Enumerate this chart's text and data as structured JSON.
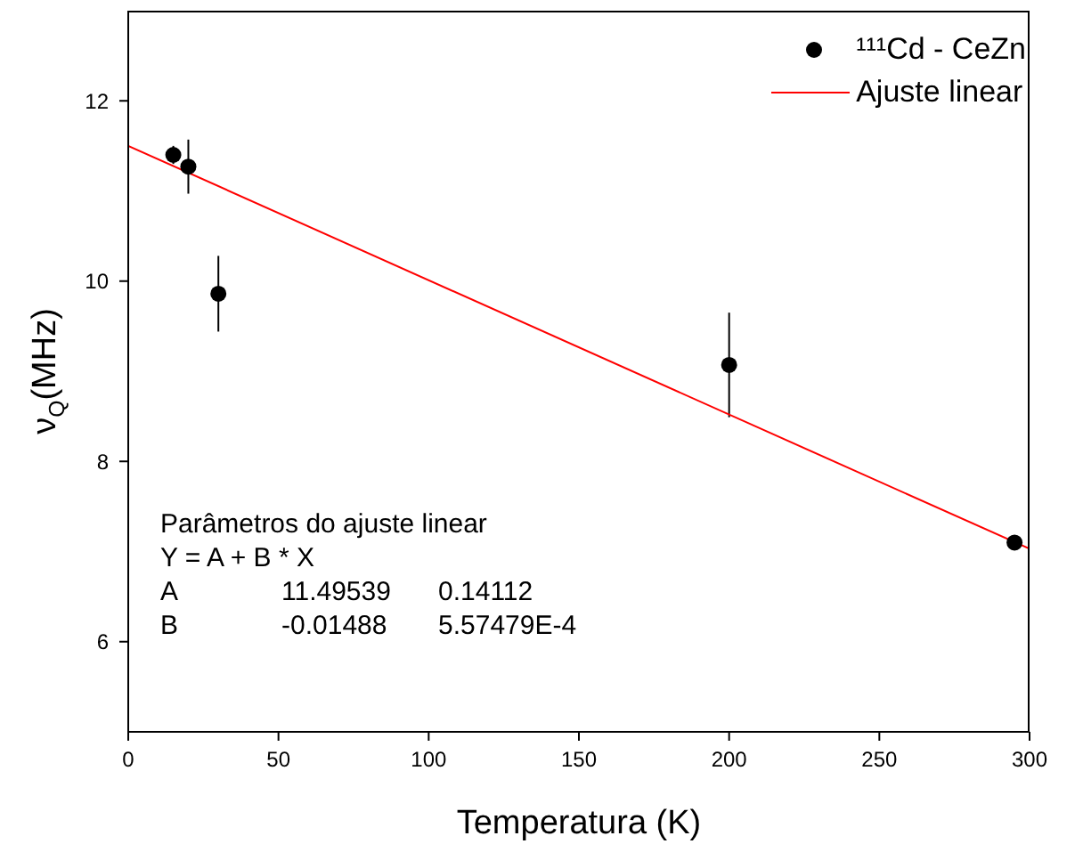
{
  "chart_data": {
    "type": "scatter",
    "xlabel": "Temperatura (K)",
    "ylabel": "ν$_{Q}$(MHz)",
    "xlim": [
      0,
      300
    ],
    "ylim": [
      5,
      13
    ],
    "xticks": [
      0,
      50,
      100,
      150,
      200,
      250,
      300
    ],
    "yticks": [
      6,
      8,
      10,
      12
    ],
    "grid": false,
    "legend": "top right",
    "marker": "circle",
    "series": [
      {
        "name": "¹¹¹Cd - CeZn",
        "color": "#000000",
        "x": [
          15,
          20,
          30,
          200,
          295
        ],
        "values": [
          11.4,
          11.27,
          9.86,
          9.07,
          7.1
        ],
        "errors": [
          0.1,
          0.3,
          0.42,
          0.58,
          0.05
        ]
      },
      {
        "name": "Ajuste linear",
        "type": "line",
        "color": "#ff0000",
        "marker": "none",
        "x": [
          0,
          300
        ],
        "values": [
          11.5,
          7.03
        ]
      }
    ],
    "annotations": [
      "Parâmetros do ajuste linear",
      "Y = A + B * X",
      "A",
      "11.49539",
      "0.14112",
      "B",
      "-0.01488",
      "5.57479E-4"
    ]
  }
}
